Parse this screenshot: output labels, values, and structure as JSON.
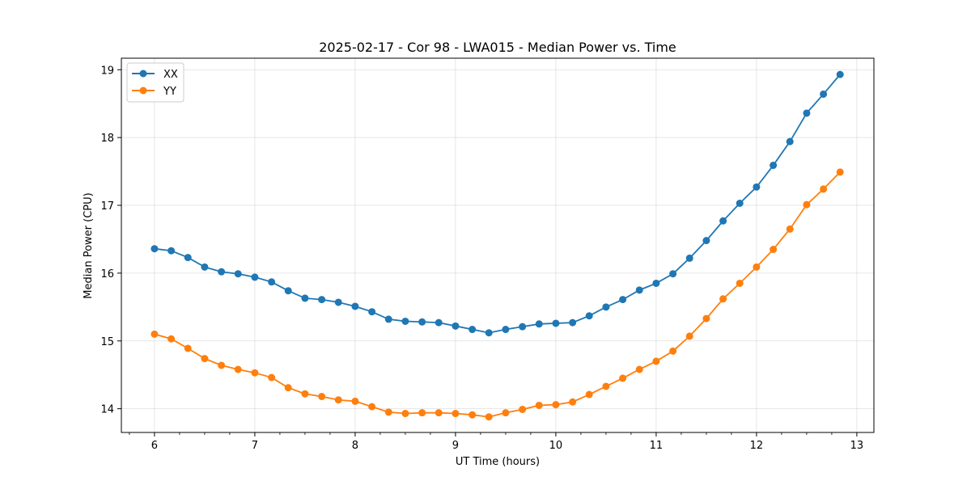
{
  "chart_data": {
    "type": "line",
    "title": "2025-02-17 - Cor 98 - LWA015 - Median Power vs. Time",
    "xlabel": "UT Time (hours)",
    "ylabel": "Median Power (CPU)",
    "xlim": [
      5.67,
      13.17
    ],
    "ylim": [
      13.65,
      19.17
    ],
    "xticks": [
      6,
      7,
      8,
      9,
      10,
      11,
      12,
      13
    ],
    "yticks": [
      14,
      15,
      16,
      17,
      18,
      19
    ],
    "grid": true,
    "legend_position": "top-left",
    "x": [
      6.0,
      6.167,
      6.333,
      6.5,
      6.667,
      6.833,
      7.0,
      7.167,
      7.333,
      7.5,
      7.667,
      7.833,
      8.0,
      8.167,
      8.333,
      8.5,
      8.667,
      8.833,
      9.0,
      9.167,
      9.333,
      9.5,
      9.667,
      9.833,
      10.0,
      10.167,
      10.333,
      10.5,
      10.667,
      10.833,
      11.0,
      11.167,
      11.333,
      11.5,
      11.667,
      11.833,
      12.0,
      12.167,
      12.333,
      12.5,
      12.667,
      12.833
    ],
    "series": [
      {
        "name": "XX",
        "color": "#1f77b4",
        "values": [
          16.36,
          16.33,
          16.23,
          16.09,
          16.02,
          15.99,
          15.94,
          15.87,
          15.74,
          15.63,
          15.61,
          15.57,
          15.51,
          15.43,
          15.32,
          15.29,
          15.28,
          15.27,
          15.22,
          15.17,
          15.12,
          15.17,
          15.21,
          15.25,
          15.26,
          15.27,
          15.37,
          15.5,
          15.61,
          15.75,
          15.85,
          15.99,
          16.22,
          16.48,
          16.77,
          17.03,
          17.27,
          17.59,
          17.94,
          18.36,
          18.64,
          18.93
        ]
      },
      {
        "name": "YY",
        "color": "#ff7f0e",
        "values": [
          15.1,
          15.03,
          14.89,
          14.74,
          14.64,
          14.58,
          14.53,
          14.46,
          14.31,
          14.22,
          14.18,
          14.13,
          14.11,
          14.03,
          13.95,
          13.93,
          13.94,
          13.94,
          13.93,
          13.91,
          13.88,
          13.94,
          13.99,
          14.05,
          14.06,
          14.1,
          14.21,
          14.33,
          14.45,
          14.58,
          14.7,
          14.85,
          15.07,
          15.33,
          15.62,
          15.85,
          16.09,
          16.35,
          16.65,
          17.01,
          17.24,
          17.49
        ]
      }
    ]
  }
}
